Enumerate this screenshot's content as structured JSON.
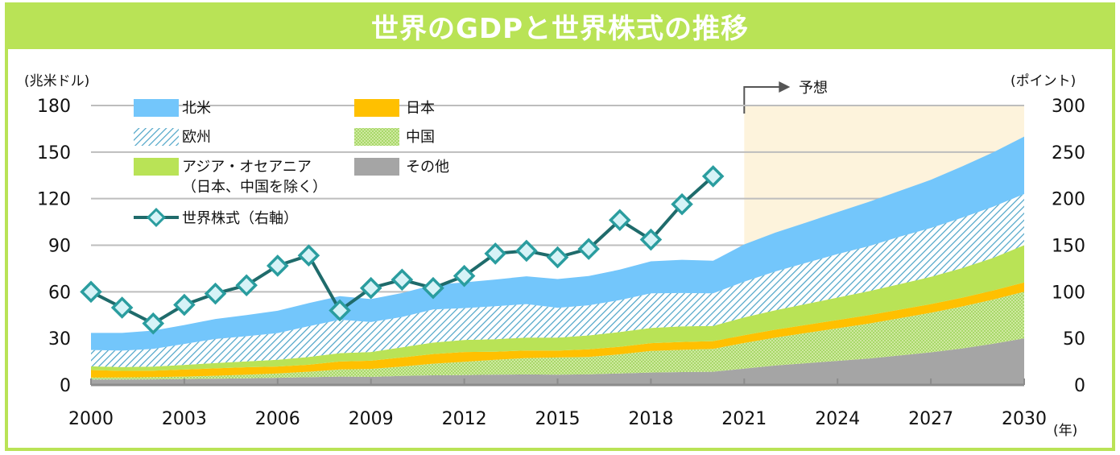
{
  "title": "世界のGDPと世界株式の推移",
  "chart_data": {
    "type": "area",
    "title": "世界のGDPと世界株式の推移",
    "xlabel": "(年)",
    "ylabel_left": "(兆米ドル)",
    "ylabel_right": "(ポイント)",
    "forecast_label": "予想",
    "forecast_start": 2021,
    "x_range": [
      2000,
      2030
    ],
    "x_ticks": [
      2000,
      2003,
      2006,
      2009,
      2012,
      2015,
      2018,
      2021,
      2024,
      2027,
      2030
    ],
    "x_tick_labels": [
      "2000",
      "2003",
      "2006",
      "2009",
      "2012",
      "2015",
      "2018",
      "2021",
      "2024",
      "2027",
      "2030"
    ],
    "ylim_left": [
      0,
      180
    ],
    "y_ticks_left": [
      0,
      30,
      60,
      90,
      120,
      150,
      180
    ],
    "y_tick_labels_left": [
      "0",
      "30",
      "60",
      "90",
      "120",
      "150",
      "180"
    ],
    "ylim_right": [
      0,
      300
    ],
    "y_ticks_right": [
      0,
      50,
      100,
      150,
      200,
      250,
      300
    ],
    "y_tick_labels_right": [
      "0",
      "50",
      "100",
      "150",
      "200",
      "250",
      "300"
    ],
    "grid": true,
    "legend_position": "top-left",
    "gdp_x": [
      2000,
      2001,
      2002,
      2003,
      2004,
      2005,
      2006,
      2007,
      2008,
      2009,
      2010,
      2011,
      2012,
      2013,
      2014,
      2015,
      2016,
      2017,
      2018,
      2019,
      2020,
      2021,
      2022,
      2023,
      2024,
      2025,
      2026,
      2027,
      2028,
      2029,
      2030
    ],
    "series": [
      {
        "name": "その他",
        "key": "other",
        "color": "#a5a5a5",
        "pattern": "solid",
        "values": [
          3.5,
          3.5,
          3.6,
          3.8,
          4.0,
          4.3,
          4.6,
          5.0,
          5.4,
          5.2,
          5.8,
          6.2,
          6.4,
          6.6,
          6.8,
          6.6,
          6.8,
          7.4,
          8.0,
          8.3,
          8.5,
          10.5,
          12.5,
          14,
          15.5,
          17,
          19,
          21,
          23.5,
          26.5,
          30
        ]
      },
      {
        "name": "中国",
        "key": "china",
        "color": "#b9e356",
        "pattern": "dots",
        "values": [
          1.2,
          1.3,
          1.5,
          1.6,
          1.9,
          2.3,
          2.8,
          3.5,
          4.6,
          5.1,
          6.1,
          7.5,
          8.5,
          9.6,
          10.5,
          11.1,
          11.2,
          12.3,
          13.9,
          14.3,
          14.7,
          16.5,
          18,
          19.5,
          21,
          22.5,
          24,
          25.5,
          27,
          28.5,
          30
        ]
      },
      {
        "name": "日本",
        "key": "japan",
        "color": "#ffc000",
        "pattern": "solid",
        "values": [
          4.9,
          4.3,
          4.1,
          4.5,
          4.8,
          4.8,
          4.5,
          4.5,
          5.1,
          5.3,
          5.8,
          6.2,
          6.3,
          5.2,
          4.9,
          4.4,
          5.0,
          4.9,
          5.0,
          5.1,
          5.0,
          5.0,
          5.1,
          5.2,
          5.3,
          5.4,
          5.5,
          5.6,
          5.7,
          5.8,
          6.0
        ]
      },
      {
        "name": "アジア・オセアニア（日本、中国を除く）",
        "key": "asia_oceania",
        "color": "#b9e356",
        "pattern": "solid",
        "values": [
          2.4,
          2.4,
          2.6,
          3.0,
          3.4,
          3.8,
          4.3,
          5.0,
          5.4,
          5.6,
          6.6,
          7.4,
          7.8,
          8.0,
          8.3,
          8.4,
          8.9,
          9.5,
          9.8,
          10.0,
          9.8,
          11.5,
          12.5,
          13.5,
          14.5,
          15.5,
          16.5,
          17.5,
          19,
          21,
          24
        ]
      },
      {
        "name": "欧州",
        "key": "europe",
        "color": "#4ba3c7",
        "pattern": "hatch",
        "values": [
          10.5,
          10.6,
          11.4,
          13.5,
          15.5,
          16.2,
          17.2,
          19.8,
          21.5,
          19.3,
          19.5,
          21.3,
          20.5,
          21.3,
          21.6,
          19.2,
          19.4,
          20.6,
          22.3,
          21.5,
          21.0,
          23,
          25,
          26.5,
          28,
          29,
          30.5,
          31.5,
          32.5,
          33,
          33
        ]
      },
      {
        "name": "北米",
        "key": "north_america",
        "color": "#73c6fb",
        "pattern": "solid",
        "values": [
          11.0,
          11.4,
          11.8,
          12.2,
          12.9,
          13.6,
          14.4,
          14.9,
          15.2,
          14.8,
          15.4,
          15.9,
          16.6,
          17.2,
          17.9,
          18.5,
          18.9,
          19.6,
          20.6,
          21.4,
          21.0,
          24,
          25,
          26,
          27,
          28.5,
          29.5,
          31,
          33,
          35,
          37
        ]
      }
    ],
    "line_series": {
      "name": "世界株式（右軸）",
      "key": "world_equity",
      "axis": "right",
      "color": "#1f6b6b",
      "marker": "diamond",
      "marker_fill": "#d6f3f7",
      "marker_edge": "#2a9d9f",
      "x": [
        2000,
        2001,
        2002,
        2003,
        2004,
        2005,
        2006,
        2007,
        2008,
        2009,
        2010,
        2011,
        2012,
        2013,
        2014,
        2015,
        2016,
        2017,
        2018,
        2019,
        2020
      ],
      "values": [
        100,
        83,
        66,
        86,
        98,
        107,
        128,
        139,
        80,
        104,
        113,
        104,
        117,
        141,
        144,
        137,
        146,
        177,
        156,
        194,
        224
      ]
    },
    "forecast_shade_color": "#fdf3dc"
  },
  "legend": {
    "items": [
      {
        "label": "北米",
        "key": "north_america"
      },
      {
        "label": "欧州",
        "key": "europe"
      },
      {
        "label": "アジア・オセアニア",
        "label2": "（日本、中国を除く）",
        "key": "asia_oceania"
      },
      {
        "label": "世界株式（右軸）",
        "key": "world_equity"
      },
      {
        "label": "日本",
        "key": "japan"
      },
      {
        "label": "中国",
        "key": "china"
      },
      {
        "label": "その他",
        "key": "other"
      }
    ]
  }
}
